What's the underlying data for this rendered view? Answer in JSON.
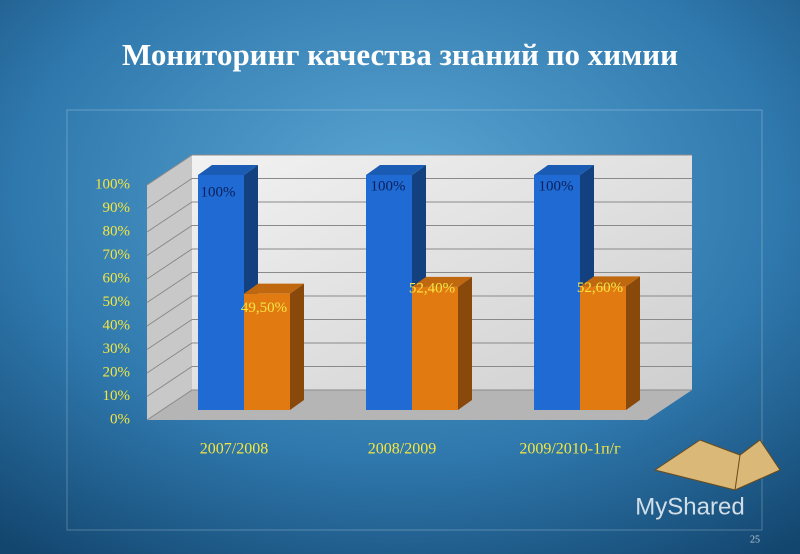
{
  "chart_data": {
    "type": "bar3d",
    "title": "Мониторинг качества знаний по химии",
    "categories": [
      "2007/2008",
      "2008/2009",
      "2009/2010-1п/г"
    ],
    "series": [
      {
        "color": "#1f6bd3",
        "values": [
          100,
          100,
          100
        ],
        "value_labels": [
          "100%",
          "100%",
          "100%"
        ]
      },
      {
        "color": "#e27a12",
        "values": [
          49.5,
          52.4,
          52.6
        ],
        "value_labels": [
          "49,50%",
          "52,40%",
          "52,60%"
        ]
      }
    ],
    "ylim": [
      0,
      100
    ],
    "yticks": [
      {
        "value": 0,
        "label": "0%"
      },
      {
        "value": 10,
        "label": "10%"
      },
      {
        "value": 20,
        "label": "20%"
      },
      {
        "value": 30,
        "label": "30%"
      },
      {
        "value": 40,
        "label": "40%"
      },
      {
        "value": 50,
        "label": "50%"
      },
      {
        "value": 60,
        "label": "60%"
      },
      {
        "value": 70,
        "label": "70%"
      },
      {
        "value": 80,
        "label": "80%"
      },
      {
        "value": 90,
        "label": "90%"
      },
      {
        "value": 100,
        "label": "100%"
      }
    ],
    "grid": true
  },
  "watermark": "MyShared",
  "slide_number": "25"
}
